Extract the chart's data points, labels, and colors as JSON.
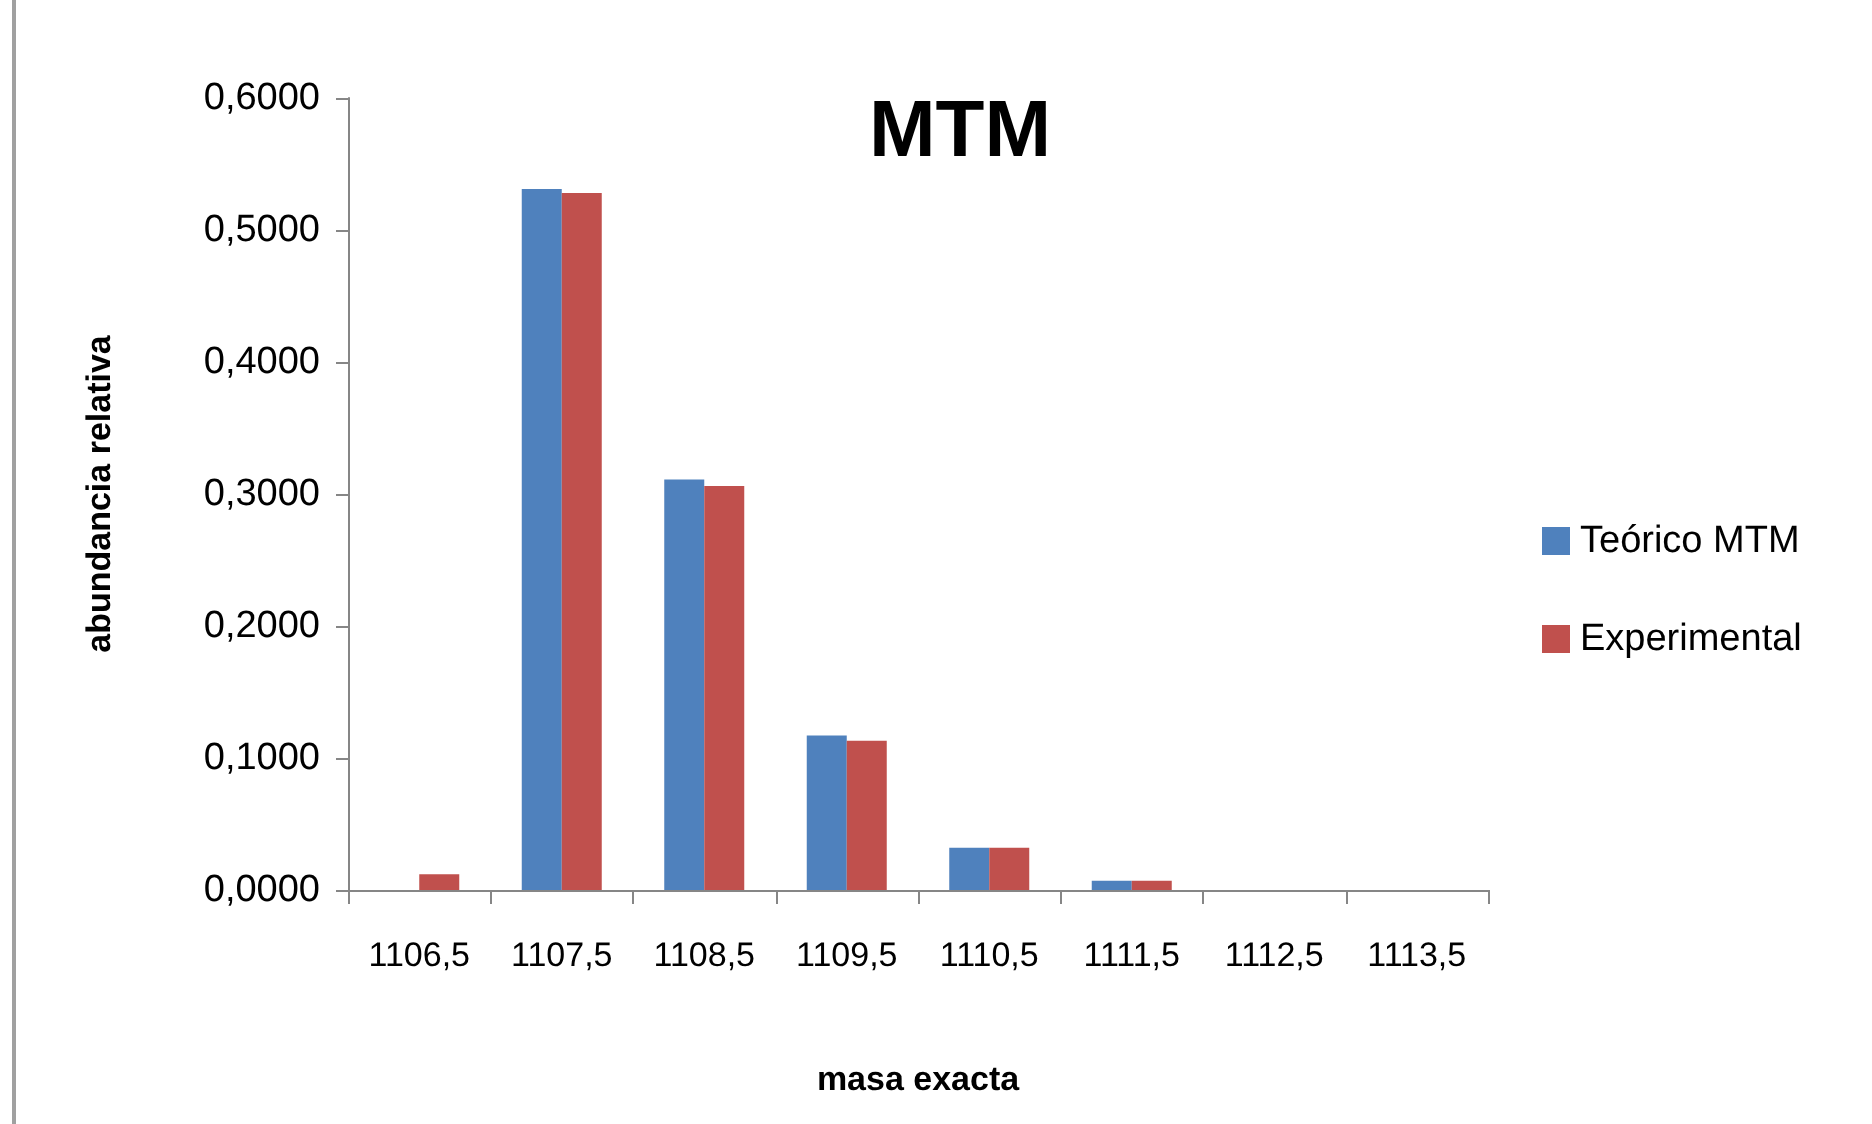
{
  "chart_data": {
    "type": "bar",
    "title": "MTM",
    "xlabel": "masa exacta",
    "ylabel": "abundancia relativa",
    "categories": [
      "1106,5",
      "1107,5",
      "1108,5",
      "1109,5",
      "1110,5",
      "1111,5",
      "1112,5",
      "1113,5"
    ],
    "series": [
      {
        "name": "Teórico MTM",
        "color": "#4f81bd",
        "values": [
          0,
          0.531,
          0.311,
          0.117,
          0.032,
          0.007,
          0,
          0
        ]
      },
      {
        "name": "Experimental",
        "color": "#c0504d",
        "values": [
          0.012,
          0.528,
          0.306,
          0.113,
          0.032,
          0.007,
          0,
          0
        ]
      }
    ],
    "ylim": [
      0,
      0.6
    ],
    "yticks": [
      {
        "value": 0,
        "label": "0,0000"
      },
      {
        "value": 0.1,
        "label": "0,1000"
      },
      {
        "value": 0.2,
        "label": "0,2000"
      },
      {
        "value": 0.3,
        "label": "0,3000"
      },
      {
        "value": 0.4,
        "label": "0,4000"
      },
      {
        "value": 0.5,
        "label": "0,5000"
      },
      {
        "value": 0.6,
        "label": "0,6000"
      }
    ],
    "grid": false,
    "legend": "right"
  }
}
